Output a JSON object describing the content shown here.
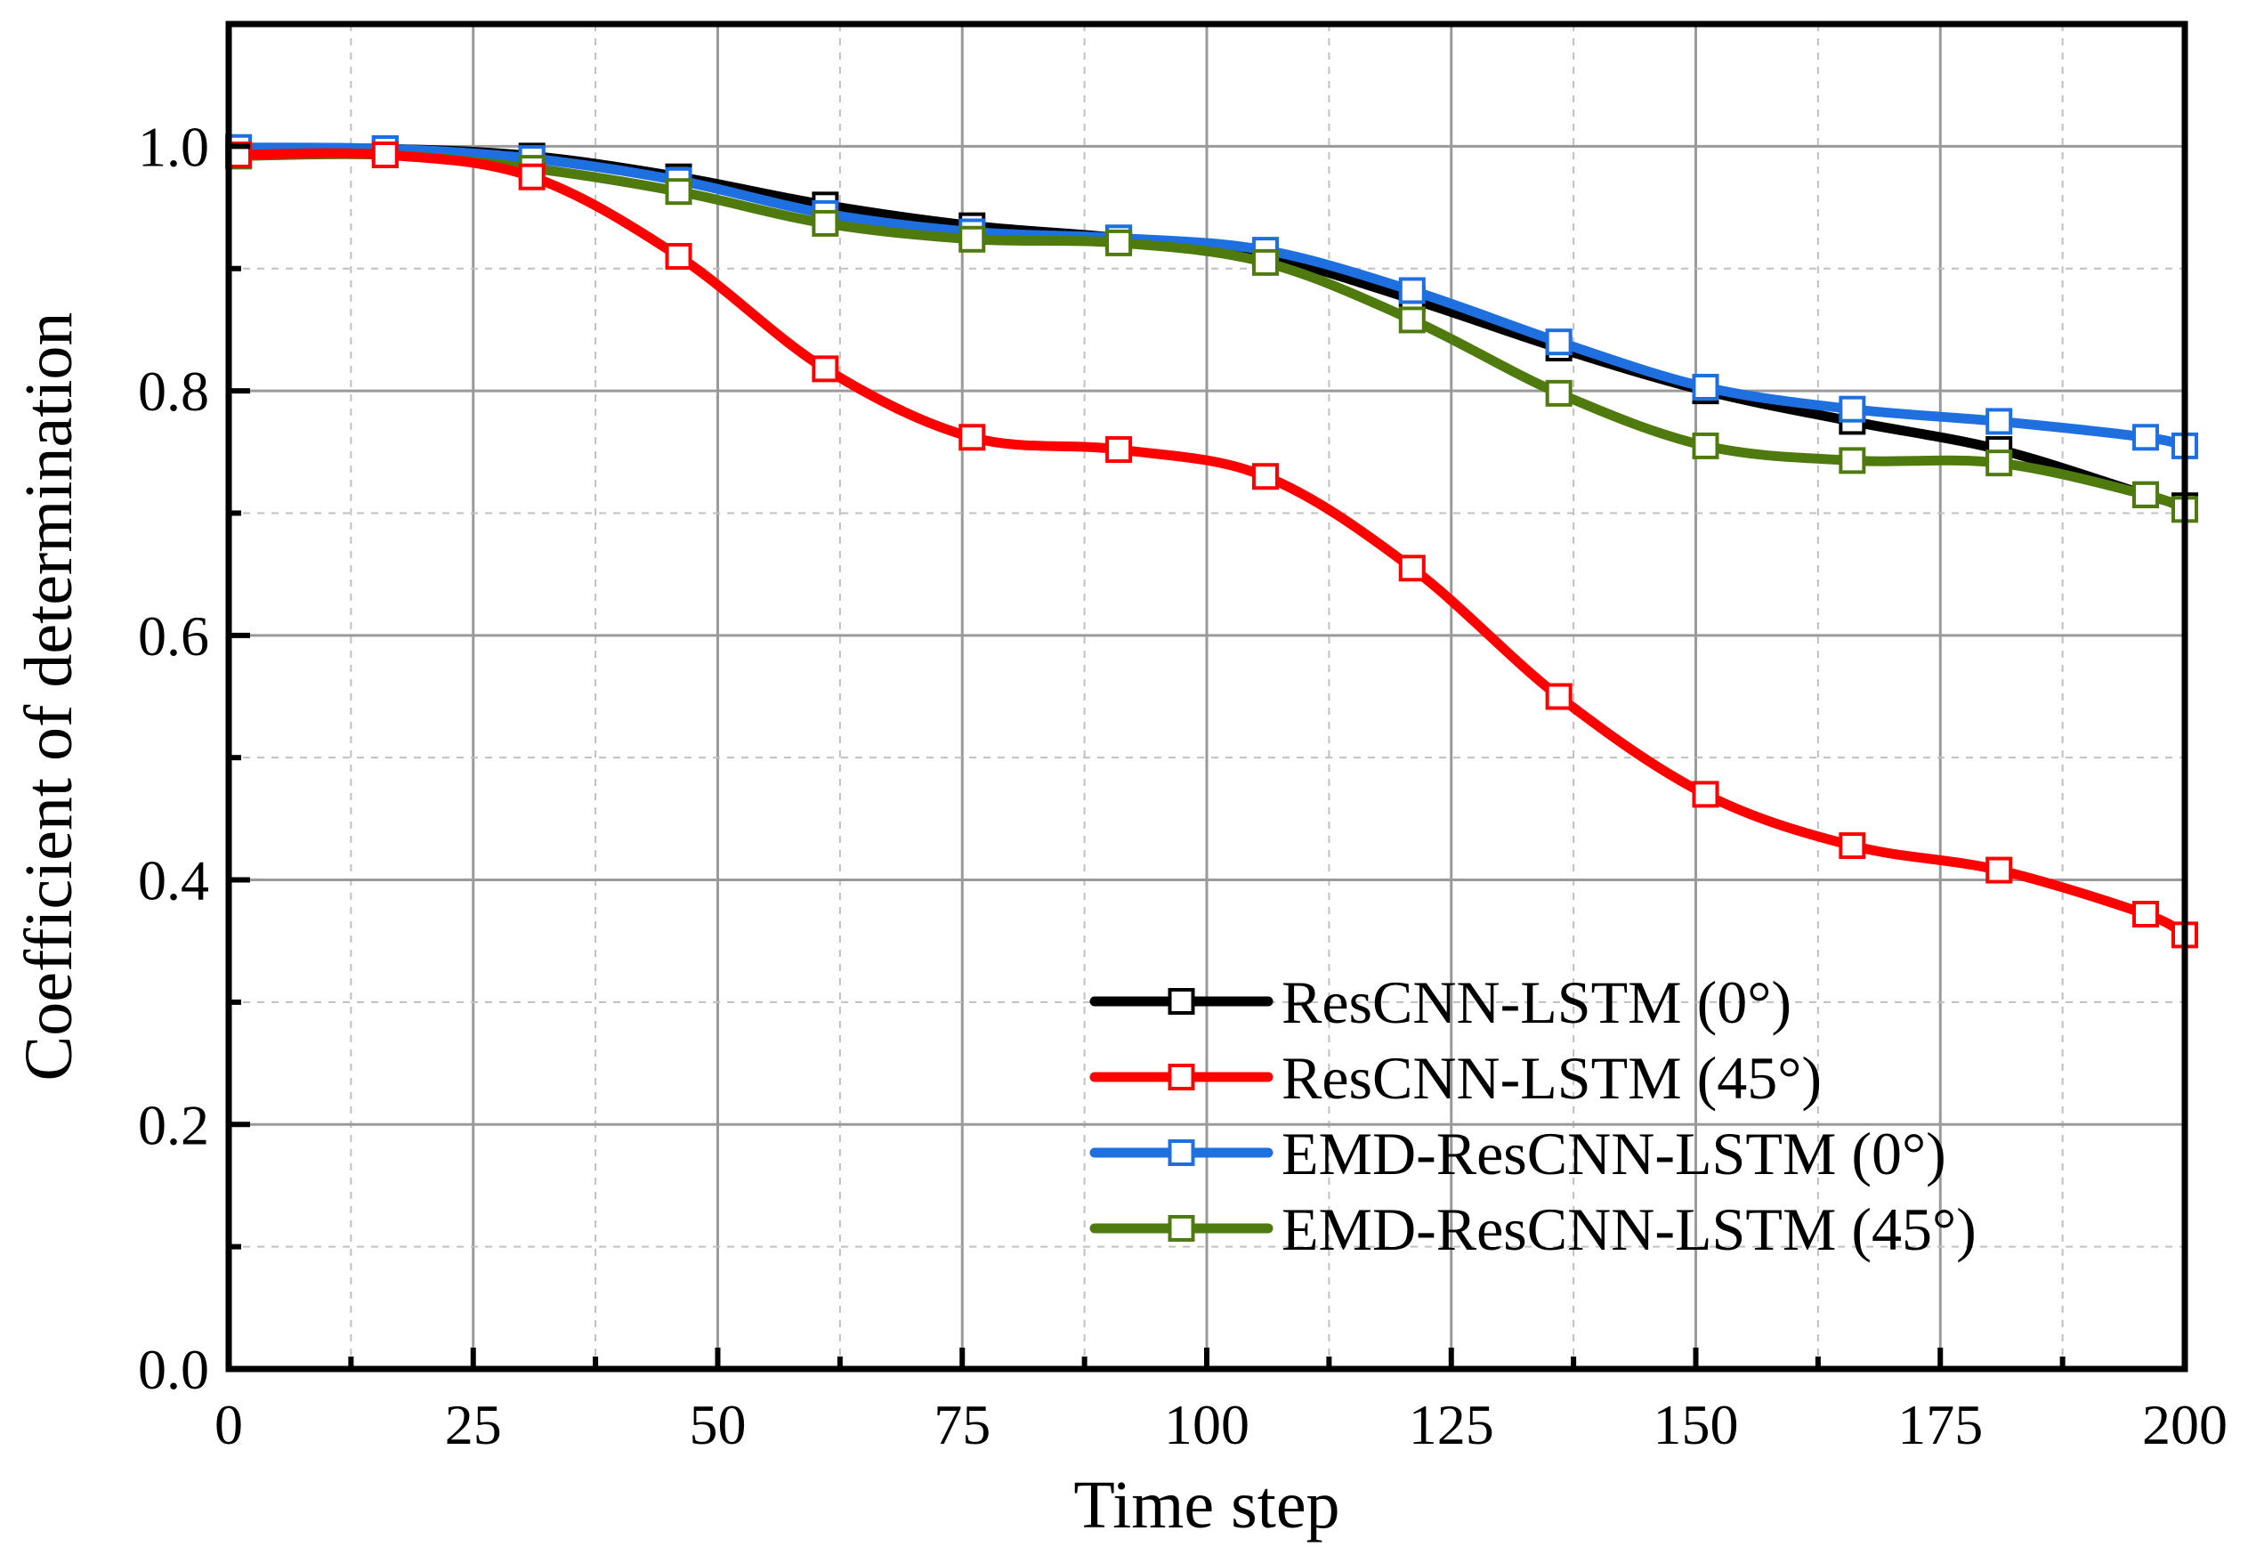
{
  "chart_data": {
    "type": "line",
    "title": "",
    "xlabel": "Time step",
    "ylabel": "Coefficient of determination",
    "xlim": [
      0,
      200
    ],
    "ylim": [
      0.0,
      1.1
    ],
    "xticks": [
      "0",
      "25",
      "50",
      "75",
      "100",
      "125",
      "150",
      "175",
      "200"
    ],
    "yticks": [
      "0.0",
      "0.2",
      "0.4",
      "0.6",
      "0.8",
      "1.0"
    ],
    "grid": true,
    "legend_position": "bottom-right",
    "x": [
      1,
      16,
      31,
      46,
      61,
      76,
      91,
      106,
      121,
      136,
      151,
      166,
      181,
      196,
      200
    ],
    "series": [
      {
        "name": "ResCNN-LSTM (0°)",
        "color": "#000000",
        "values": [
          0.998,
          0.998,
          0.992,
          0.975,
          0.952,
          0.935,
          0.925,
          0.91,
          0.875,
          0.835,
          0.8,
          0.775,
          0.752,
          0.715,
          0.706
        ]
      },
      {
        "name": "ResCNN-LSTM (45°)",
        "color": "#ff0000",
        "values": [
          0.993,
          0.993,
          0.975,
          0.91,
          0.818,
          0.762,
          0.752,
          0.73,
          0.655,
          0.55,
          0.47,
          0.428,
          0.408,
          0.372,
          0.355
        ]
      },
      {
        "name": "EMD-ResCNN-LSTM (0°)",
        "color": "#1e6fe0",
        "values": [
          0.999,
          0.998,
          0.99,
          0.972,
          0.945,
          0.93,
          0.925,
          0.915,
          0.882,
          0.84,
          0.803,
          0.785,
          0.775,
          0.762,
          0.755
        ]
      },
      {
        "name": "EMD-ResCNN-LSTM (45°)",
        "color": "#4f7a0e",
        "values": [
          0.992,
          0.993,
          0.982,
          0.963,
          0.937,
          0.924,
          0.921,
          0.905,
          0.858,
          0.798,
          0.755,
          0.743,
          0.741,
          0.715,
          0.703
        ]
      }
    ]
  }
}
